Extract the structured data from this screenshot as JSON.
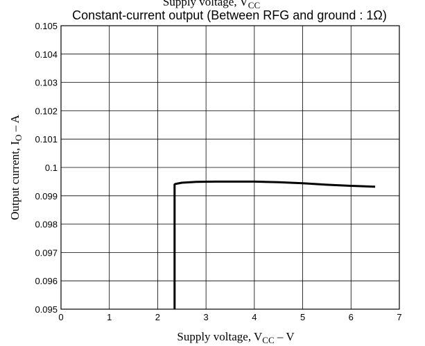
{
  "chart_data": {
    "type": "line",
    "title_top_partial": "Supply voltage, V",
    "title_top_partial_sub": "CC",
    "title": "Constant-current output (Between RFG and ground : 1Ω)",
    "xlabel": {
      "prefix": "Supply voltage, V",
      "sub": "CC",
      "suffix": "  –  V"
    },
    "ylabel": {
      "prefix": "Output current, I",
      "sub": "O",
      "suffix": "  –  A"
    },
    "xlim": [
      0,
      7
    ],
    "ylim": [
      0.095,
      0.105
    ],
    "xticks": [
      "0",
      "1",
      "2",
      "3",
      "4",
      "5",
      "6",
      "7"
    ],
    "yticks": [
      "0.095",
      "0.096",
      "0.097",
      "0.098",
      "0.099",
      "0.1",
      "0.101",
      "0.102",
      "0.103",
      "0.104",
      "0.105"
    ],
    "grid": true,
    "series": [
      {
        "x": [
          2.35,
          2.35,
          2.37,
          2.5,
          2.8,
          3.2,
          3.6,
          4.0,
          4.5,
          5.0,
          5.5,
          6.0,
          6.5
        ],
        "y": [
          0.095,
          0.0994,
          0.09942,
          0.09946,
          0.09949,
          0.0995,
          0.0995,
          0.0995,
          0.09948,
          0.09944,
          0.09939,
          0.09935,
          0.09932
        ]
      }
    ]
  }
}
